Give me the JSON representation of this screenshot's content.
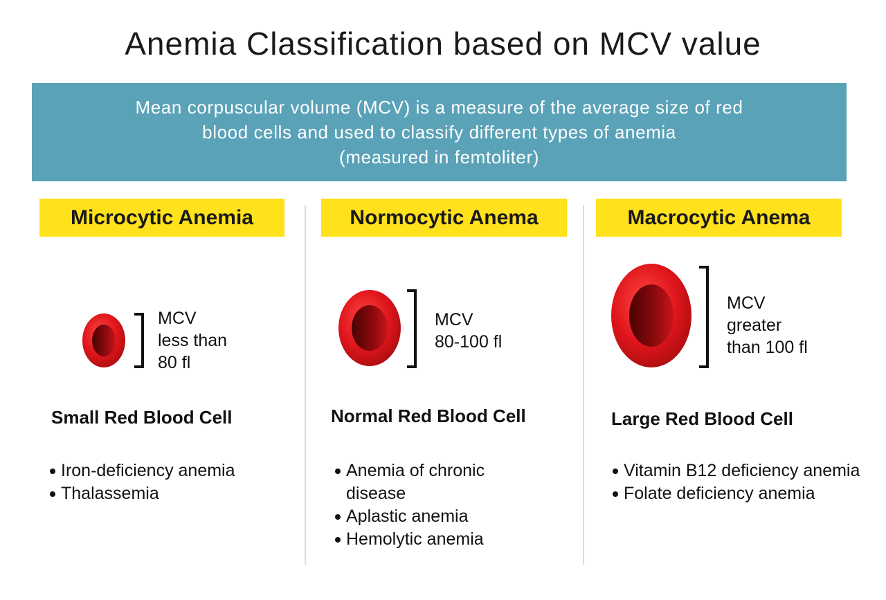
{
  "title": "Anemia Classification based on MCV value",
  "banner": {
    "line1": "Mean corpuscular volume (MCV) is a measure of the average size of red",
    "line2": "blood cells and used to classify different types of anemia",
    "line3": "(measured in femtoliter)"
  },
  "columns": [
    {
      "heading": "Microcytic Anemia",
      "mcv_lines": [
        "MCV",
        "less than",
        "80 fl"
      ],
      "cell_label": "Small Red Blood Cell",
      "diseases": [
        "Iron-deficiency anemia",
        "Thalassemia"
      ]
    },
    {
      "heading": "Normocytic Anema",
      "mcv_lines": [
        "MCV",
        "80-100 fl"
      ],
      "cell_label": "Normal Red Blood Cell",
      "diseases": [
        "Anemia of chronic disease",
        "Aplastic anemia",
        "Hemolytic anemia"
      ]
    },
    {
      "heading": "Macrocytic Anema",
      "mcv_lines": [
        "MCV",
        "greater",
        "than 100 fl"
      ],
      "cell_label": "Large Red Blood Cell",
      "diseases": [
        "Vitamin B12 deficiency anemia",
        "Folate deficiency anemia"
      ]
    }
  ],
  "colors": {
    "banner": "#5aa2b7",
    "heading_highlight": "#ffe11c",
    "cell_red": "#e0161c"
  }
}
